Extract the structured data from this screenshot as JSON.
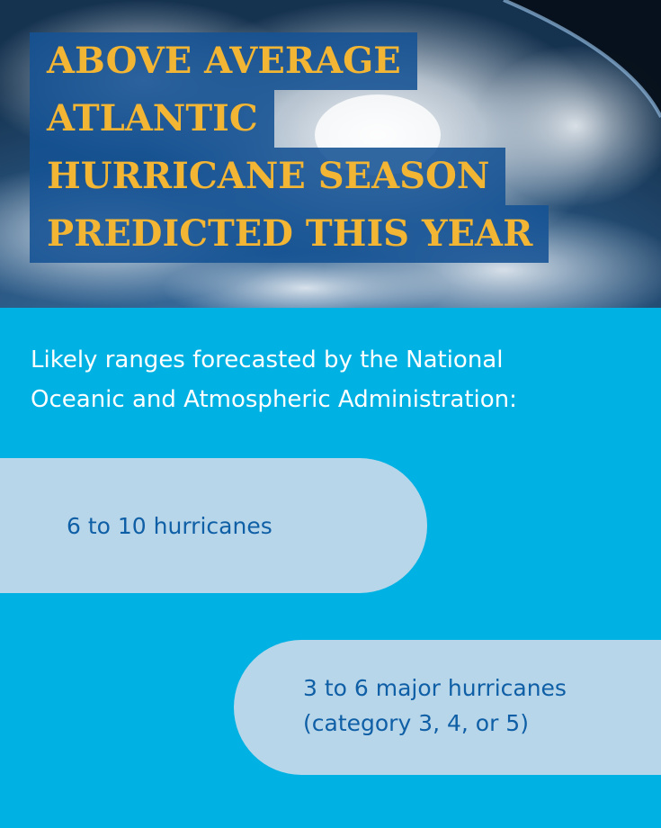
{
  "title_lines": [
    "ABOVE AVERAGE",
    "ATLANTIC",
    "HURRICANE SEASON",
    "PREDICTED THIS YEAR"
  ],
  "intro_lines": [
    "Likely ranges forecasted by the National",
    "Oceanic and Atmospheric Administration:"
  ],
  "forecast_items": [
    {
      "lines": [
        "6 to 10 hurricanes"
      ]
    },
    {
      "lines": [
        "3 to 6 major hurricanes",
        "(category 3, 4, or 5)"
      ]
    }
  ],
  "colors": {
    "background": "#00b2e3",
    "title_box": "#145294",
    "title_text": "#f2b534",
    "pill": "#b8d6ea",
    "pill_text": "#0f5fa6"
  }
}
